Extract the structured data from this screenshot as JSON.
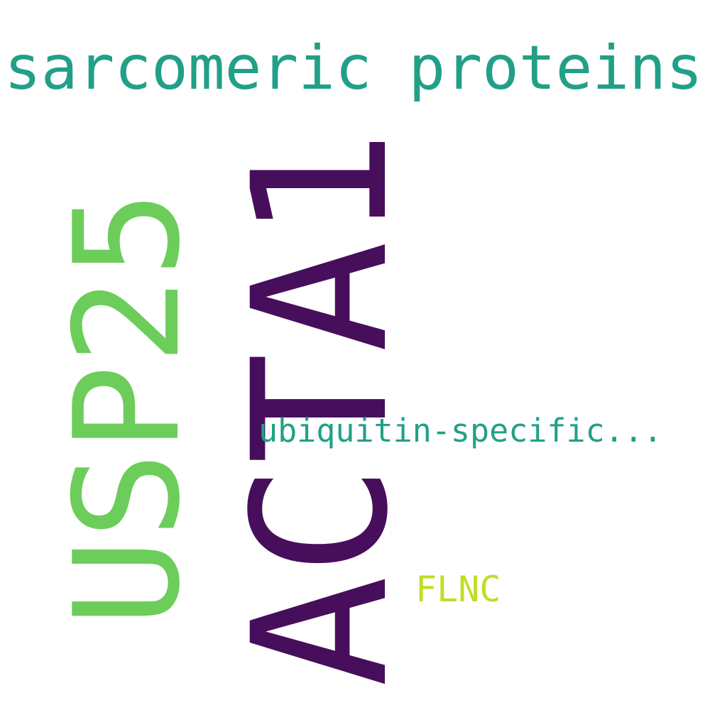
{
  "words": [
    {
      "text": "sarcomeric proteins",
      "color": "#21a087"
    },
    {
      "text": "ACTA1",
      "color": "#470e5c"
    },
    {
      "text": "USP25",
      "color": "#6ccd5a"
    },
    {
      "text": "ubiquitin-specific...",
      "color": "#21a087"
    },
    {
      "text": "FLNC",
      "color": "#bddf26"
    }
  ]
}
